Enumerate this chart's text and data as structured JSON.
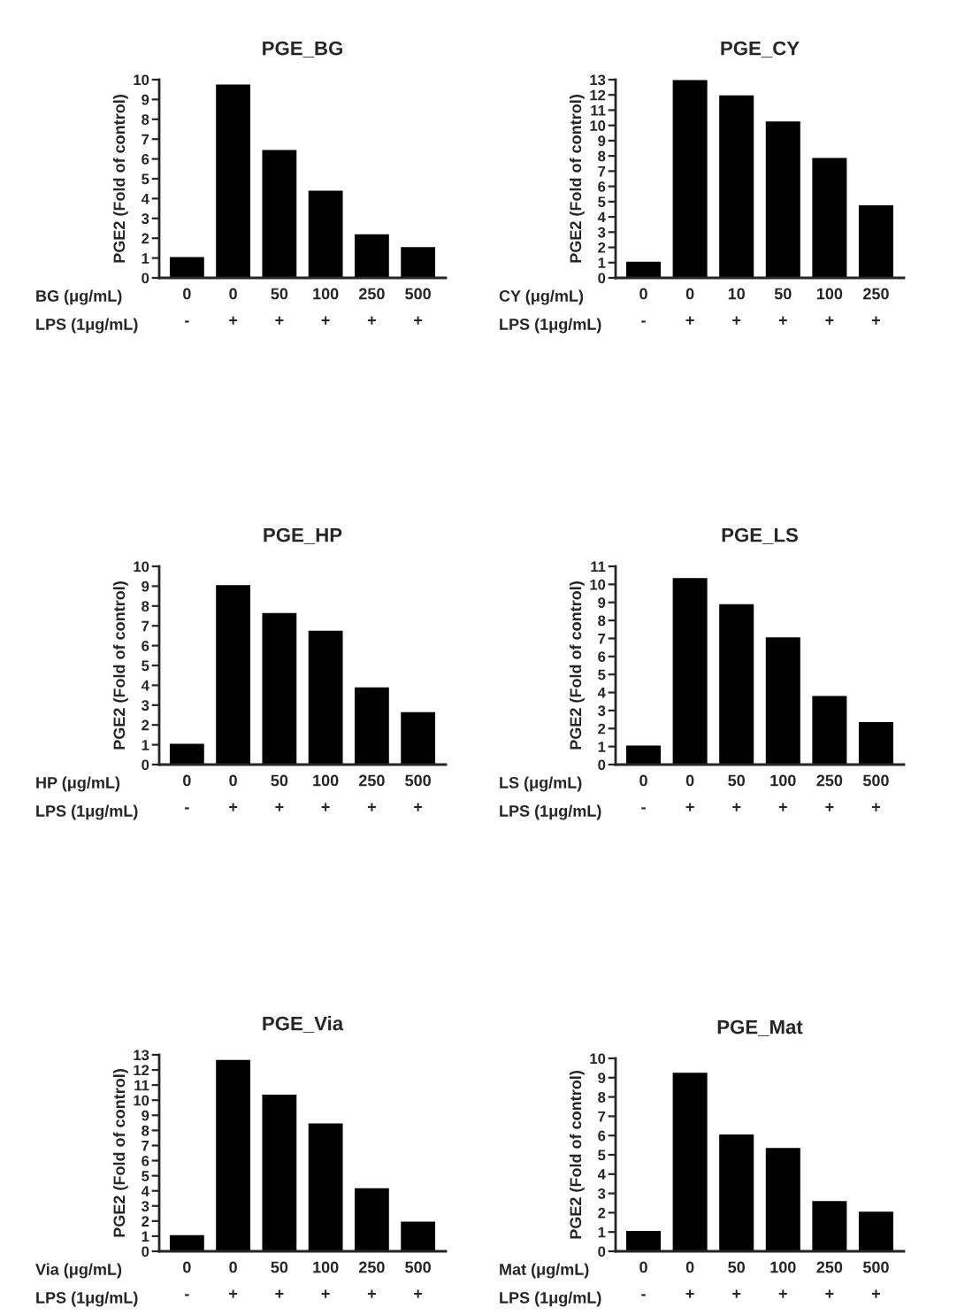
{
  "chart_data": [
    {
      "type": "bar",
      "title": "PGE_BG",
      "ylabel": "PGE2 (Fold of control)",
      "categories": [
        "0\n-",
        "0\n+",
        "50\n+",
        "100\n+",
        "250\n+",
        "500\n+"
      ],
      "values": [
        1,
        9.7,
        6.4,
        4.35,
        2.15,
        1.5
      ],
      "color": "#000000",
      "ylim": [
        0,
        10
      ],
      "yticks": [
        0,
        1,
        2,
        3,
        4,
        5,
        6,
        7,
        8,
        9,
        10
      ],
      "annotations": [
        "BG (μg/mL)",
        "LPS (1μg/mL)"
      ]
    },
    {
      "type": "bar",
      "title": "PGE_CY",
      "ylabel": "PGE2 (Fold of control)",
      "categories": [
        "0\n-",
        "0\n+",
        "10\n+",
        "50\n+",
        "100\n+",
        "250\n+"
      ],
      "values": [
        1,
        12.9,
        11.9,
        10.2,
        7.8,
        4.7
      ],
      "color": "#000000",
      "ylim": [
        0,
        13
      ],
      "yticks": [
        0,
        1,
        2,
        3,
        4,
        5,
        6,
        7,
        8,
        9,
        10,
        11,
        12,
        13
      ],
      "annotations": [
        "CY (μg/mL)",
        "LPS (1μg/mL)"
      ]
    },
    {
      "type": "bar",
      "title": "PGE_HP",
      "ylabel": "PGE2 (Fold of control)",
      "categories": [
        "0\n-",
        "0\n+",
        "50\n+",
        "100\n+",
        "250\n+",
        "500\n+"
      ],
      "values": [
        1,
        9.0,
        7.6,
        6.7,
        3.85,
        2.6
      ],
      "color": "#000000",
      "ylim": [
        0,
        10
      ],
      "yticks": [
        0,
        1,
        2,
        3,
        4,
        5,
        6,
        7,
        8,
        9,
        10
      ],
      "annotations": [
        "HP (μg/mL)",
        "LPS (1μg/mL)"
      ]
    },
    {
      "type": "bar",
      "title": "PGE_LS",
      "ylabel": "PGE2 (Fold of control)",
      "categories": [
        "0\n-",
        "0\n+",
        "50\n+",
        "100\n+",
        "250\n+",
        "500\n+"
      ],
      "values": [
        1,
        10.3,
        8.85,
        7.0,
        3.75,
        2.3
      ],
      "color": "#000000",
      "ylim": [
        0,
        11
      ],
      "yticks": [
        0,
        1,
        2,
        3,
        4,
        5,
        6,
        7,
        8,
        9,
        10,
        11
      ],
      "annotations": [
        "LS (μg/mL)",
        "LPS (1μg/mL)"
      ]
    },
    {
      "type": "bar",
      "title": "PGE_Via",
      "ylabel": "PGE2 (Fold of control)",
      "categories": [
        "0\n-",
        "0\n+",
        "50\n+",
        "100\n+",
        "250\n+",
        "500\n+"
      ],
      "values": [
        1,
        12.6,
        10.3,
        8.4,
        4.1,
        1.9
      ],
      "color": "#000000",
      "ylim": [
        0,
        13
      ],
      "yticks": [
        0,
        1,
        2,
        3,
        4,
        5,
        6,
        7,
        8,
        9,
        10,
        11,
        12,
        13
      ],
      "annotations": [
        "Via (μg/mL)",
        "LPS (1μg/mL)"
      ]
    },
    {
      "type": "bar",
      "title": "PGE_Mat",
      "ylabel": "PGE2 (Fold of control)",
      "categories": [
        "0\n-",
        "0\n+",
        "50\n+",
        "100\n+",
        "250\n+",
        "500\n+"
      ],
      "values": [
        1,
        9.2,
        6.0,
        5.3,
        2.55,
        2.0
      ],
      "color": "#000000",
      "ylim": [
        0,
        10
      ],
      "yticks": [
        0,
        1,
        2,
        3,
        4,
        5,
        6,
        7,
        8,
        9,
        10
      ],
      "annotations": [
        "Mat (μg/mL)",
        "LPS (1μg/mL)"
      ]
    }
  ]
}
